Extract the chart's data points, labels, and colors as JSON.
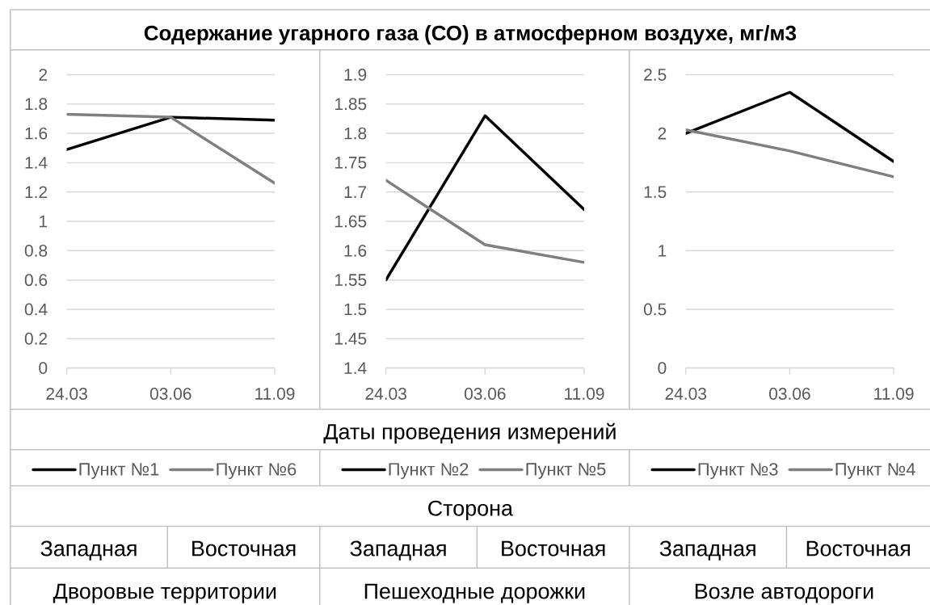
{
  "chart_data": [
    {
      "type": "line",
      "title": "Содержание угарного газа (СО) в атмосферном воздухе, мг/м3",
      "xlabel": "Даты проведения измерений",
      "categories": [
        "24.03",
        "03.06",
        "11.09"
      ],
      "series": [
        {
          "name": "Пункт №1",
          "color": "#000000",
          "values": [
            1.49,
            1.71,
            1.69
          ]
        },
        {
          "name": "Пункт №6",
          "color": "#7f7f7f",
          "values": [
            1.73,
            1.71,
            1.26
          ]
        }
      ],
      "ylim": [
        0,
        2
      ],
      "yticks": [
        0,
        0.2,
        0.4,
        0.6,
        0.8,
        1,
        1.2,
        1.4,
        1.6,
        1.8,
        2
      ],
      "grid": "y",
      "legend": "bottom",
      "annotations": [
        "Сторона",
        "Западная",
        "Восточная",
        "Дворовые территории"
      ]
    },
    {
      "type": "line",
      "categories": [
        "24.03",
        "03.06",
        "11.09"
      ],
      "series": [
        {
          "name": "Пункт №2",
          "color": "#000000",
          "values": [
            1.55,
            1.83,
            1.67
          ]
        },
        {
          "name": "Пункт №5",
          "color": "#7f7f7f",
          "values": [
            1.72,
            1.61,
            1.58
          ]
        }
      ],
      "ylim": [
        1.4,
        1.9
      ],
      "yticks": [
        1.4,
        1.45,
        1.5,
        1.55,
        1.6,
        1.65,
        1.7,
        1.75,
        1.8,
        1.85,
        1.9
      ],
      "grid": "y",
      "legend": "bottom",
      "annotations": [
        "Западная",
        "Восточная",
        "Пешеходные дорожки"
      ]
    },
    {
      "type": "line",
      "categories": [
        "24.03",
        "03.06",
        "11.09"
      ],
      "series": [
        {
          "name": "Пункт №3",
          "color": "#000000",
          "values": [
            2.0,
            2.35,
            1.76
          ]
        },
        {
          "name": "Пункт №4",
          "color": "#7f7f7f",
          "values": [
            2.03,
            1.85,
            1.63
          ]
        }
      ],
      "ylim": [
        0,
        2.5
      ],
      "yticks": [
        0,
        0.5,
        1,
        1.5,
        2,
        2.5
      ],
      "grid": "y",
      "legend": "bottom",
      "annotations": [
        "Западная",
        "Восточная",
        "Возле автодороги"
      ]
    }
  ]
}
